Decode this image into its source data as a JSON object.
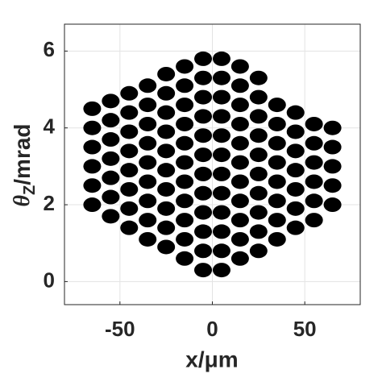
{
  "chart_data": {
    "type": "scatter",
    "xlabel": "x/μm",
    "ylabel": {
      "symbol": "θ",
      "subscript": "Z",
      "unit": "/mrad"
    },
    "color": "#000000",
    "grid": true,
    "xlim": [
      -80,
      80
    ],
    "xticks": [
      -50,
      0,
      50
    ],
    "ylim": [
      -0.6,
      6.7
    ],
    "yticks": [
      0,
      2,
      4,
      6
    ],
    "x": [
      -65,
      -65,
      -65,
      -65,
      -65,
      -65,
      -55,
      -55,
      -55,
      -55,
      -55,
      -55,
      -55,
      -45,
      -45,
      -45,
      -45,
      -45,
      -45,
      -45,
      -45,
      -35,
      -35,
      -35,
      -35,
      -35,
      -35,
      -35,
      -35,
      -35,
      -25,
      -25,
      -25,
      -25,
      -25,
      -25,
      -25,
      -25,
      -25,
      -25,
      -15,
      -15,
      -15,
      -15,
      -15,
      -15,
      -15,
      -15,
      -15,
      -15,
      -15,
      -5,
      -5,
      -5,
      -5,
      -5,
      -5,
      -5,
      -5,
      -5,
      -5,
      -5,
      -5,
      5,
      5,
      5,
      5,
      5,
      5,
      5,
      5,
      5,
      5,
      5,
      5,
      15,
      15,
      15,
      15,
      15,
      15,
      15,
      15,
      15,
      15,
      15,
      25,
      25,
      25,
      25,
      25,
      25,
      25,
      25,
      25,
      25,
      35,
      35,
      35,
      35,
      35,
      35,
      35,
      35,
      45,
      45,
      45,
      45,
      45,
      45,
      45,
      55,
      55,
      55,
      55,
      55,
      55,
      65,
      65,
      65,
      65,
      65
    ],
    "values": [
      2.0,
      2.5,
      3.0,
      3.5,
      4.0,
      4.5,
      1.7,
      2.2,
      2.7,
      3.2,
      3.7,
      4.2,
      4.7,
      1.4,
      1.9,
      2.4,
      2.9,
      3.4,
      3.9,
      4.4,
      4.9,
      1.1,
      1.6,
      2.1,
      2.6,
      3.1,
      3.6,
      4.1,
      4.6,
      5.1,
      0.9,
      1.4,
      1.9,
      2.4,
      2.9,
      3.4,
      3.9,
      4.4,
      4.9,
      5.4,
      0.6,
      1.1,
      1.6,
      2.1,
      2.6,
      3.1,
      3.6,
      4.1,
      4.6,
      5.1,
      5.6,
      0.3,
      0.8,
      1.3,
      1.8,
      2.3,
      2.8,
      3.3,
      3.8,
      4.3,
      4.8,
      5.3,
      5.8,
      0.3,
      0.8,
      1.3,
      1.8,
      2.3,
      2.8,
      3.3,
      3.8,
      4.3,
      4.8,
      5.3,
      5.8,
      0.6,
      1.1,
      1.6,
      2.1,
      2.6,
      3.1,
      3.6,
      4.1,
      4.6,
      5.1,
      5.6,
      0.8,
      1.3,
      1.8,
      2.3,
      2.8,
      3.3,
      3.8,
      4.3,
      4.8,
      5.3,
      1.1,
      1.6,
      2.1,
      2.6,
      3.1,
      3.6,
      4.1,
      4.6,
      1.4,
      1.9,
      2.4,
      2.9,
      3.4,
      3.9,
      4.4,
      1.6,
      2.1,
      2.6,
      3.1,
      3.6,
      4.1,
      2.0,
      2.5,
      3.0,
      3.5,
      4.0
    ]
  }
}
